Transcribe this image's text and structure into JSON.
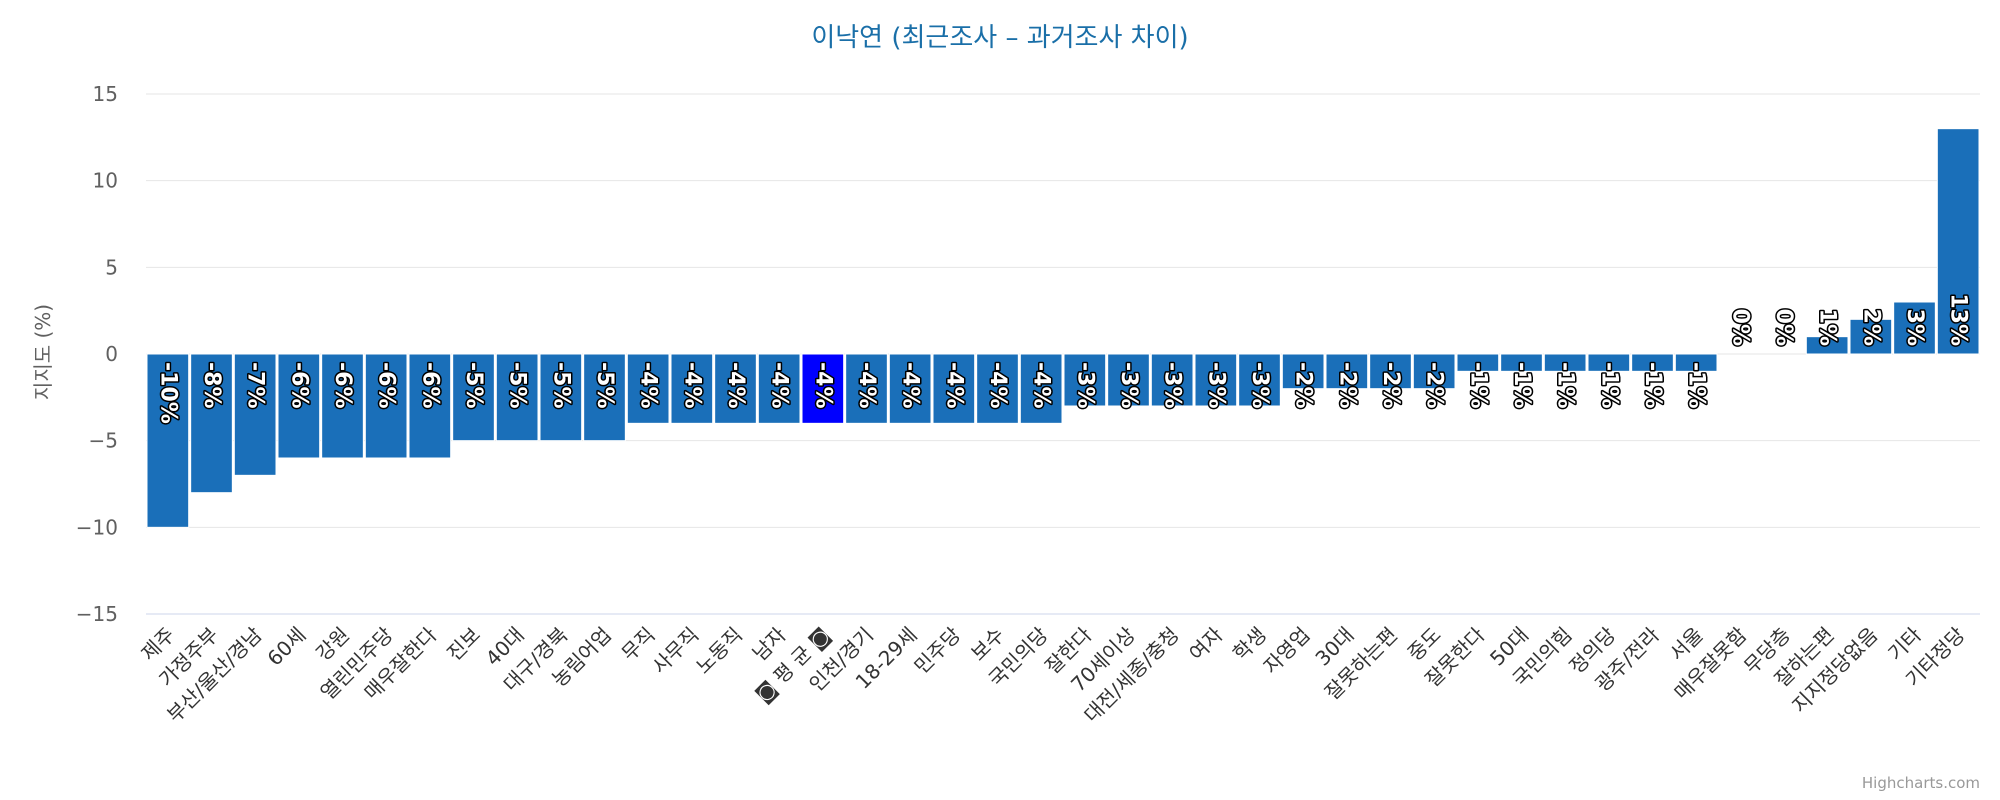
{
  "title": "이낙연 (최근조사 – 과거조사 차이)",
  "credit": "Highcharts.com",
  "colors": {
    "bar": "#1a6fb9",
    "highlight": "#0000ff",
    "title": "#1a6fa8",
    "tick": "#606060"
  },
  "chart_data": {
    "type": "bar",
    "title": "이낙연 (최근조사 – 과거조사 차이)",
    "ylabel": "지지도 (%)",
    "xlabel": "",
    "ylim": [
      -15,
      15
    ],
    "yticks": [
      15,
      10,
      5,
      0,
      -5,
      -10,
      -15
    ],
    "ytick_labels": [
      "15",
      "10",
      "5",
      "0",
      "−5",
      "−10",
      "−15"
    ],
    "grid": true,
    "legend": "none",
    "highlight_category": "◙ 평 균 ◙",
    "categories": [
      "제주",
      "가정주부",
      "부산/울산/경남",
      "60세",
      "강원",
      "열린민주당",
      "매우잘한다",
      "진보",
      "40대",
      "대구/경북",
      "농림어업",
      "무직",
      "사무직",
      "노동직",
      "남자",
      "◙ 평 균 ◙",
      "인천/경기",
      "18-29세",
      "민주당",
      "보수",
      "국민의당",
      "잘한다",
      "70세이상",
      "대전/세종/충청",
      "여자",
      "학생",
      "자영업",
      "30대",
      "잘못하는편",
      "중도",
      "잘못한다",
      "50대",
      "국민의힘",
      "정의당",
      "광주/전라",
      "서울",
      "매우잘못함",
      "무당층",
      "잘하는편",
      "지지정당없음",
      "기타",
      "기타정당"
    ],
    "values": [
      -10,
      -8,
      -7,
      -6,
      -6,
      -6,
      -6,
      -5,
      -5,
      -5,
      -5,
      -4,
      -4,
      -4,
      -4,
      -4,
      -4,
      -4,
      -4,
      -4,
      -4,
      -3,
      -3,
      -3,
      -3,
      -3,
      -2,
      -2,
      -2,
      -2,
      -1,
      -1,
      -1,
      -1,
      -1,
      -1,
      0,
      0,
      1,
      2,
      3,
      13
    ],
    "data_labels": [
      "-10%",
      "-8%",
      "-7%",
      "-6%",
      "-6%",
      "-6%",
      "-6%",
      "-5%",
      "-5%",
      "-5%",
      "-5%",
      "-4%",
      "-4%",
      "-4%",
      "-4%",
      "-4%",
      "-4%",
      "-4%",
      "-4%",
      "-4%",
      "-4%",
      "-3%",
      "-3%",
      "-3%",
      "-3%",
      "-3%",
      "-2%",
      "-2%",
      "-2%",
      "-2%",
      "-1%",
      "-1%",
      "-1%",
      "-1%",
      "-1%",
      "-1%",
      "0%",
      "0%",
      "1%",
      "2%",
      "3%",
      "13%"
    ]
  }
}
